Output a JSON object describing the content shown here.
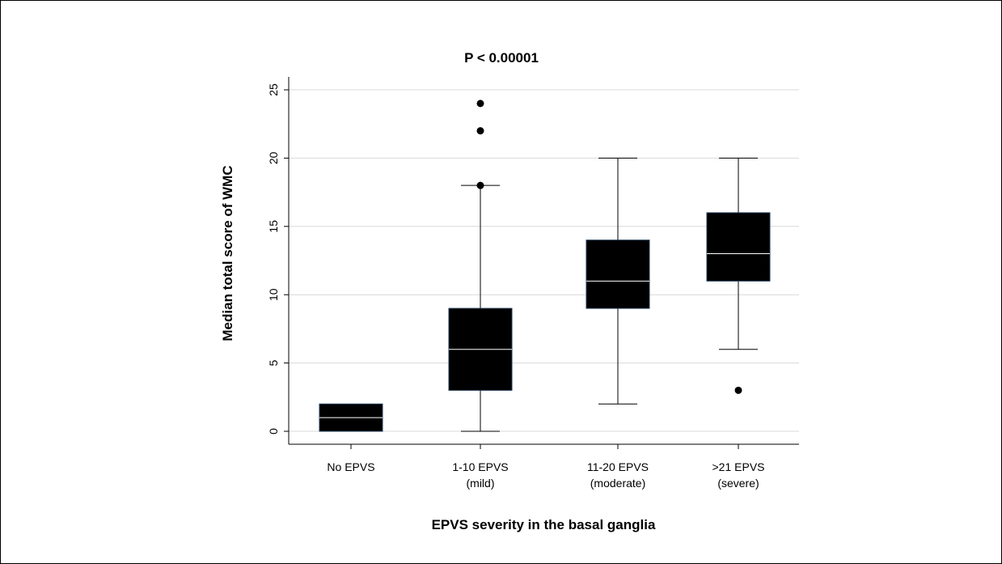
{
  "chart_data": {
    "type": "box",
    "title": "P < 0.00001",
    "xlabel": "EPVS severity in the basal ganglia",
    "ylabel": "Median total score of WMC",
    "ylim": [
      -1,
      26
    ],
    "yticks": [
      "0",
      "5",
      "10",
      "15",
      "20",
      "25"
    ],
    "grid": true,
    "categories": [
      {
        "line1": "No EPVS",
        "line2": ""
      },
      {
        "line1": "1-10 EPVS",
        "line2": "(mild)"
      },
      {
        "line1": "11-20 EPVS",
        "line2": "(moderate)"
      },
      {
        "line1": ">21 EPVS",
        "line2": "(severe)"
      }
    ],
    "boxes": [
      {
        "whisker_low": 0,
        "q1": 0,
        "median": 1,
        "q3": 2,
        "whisker_high": 2,
        "outliers": []
      },
      {
        "whisker_low": 0,
        "q1": 3,
        "median": 6,
        "q3": 9,
        "whisker_high": 18,
        "outliers": [
          18,
          22,
          24
        ]
      },
      {
        "whisker_low": 2,
        "q1": 9,
        "median": 11,
        "q3": 14,
        "whisker_high": 20,
        "outliers": []
      },
      {
        "whisker_low": 6,
        "q1": 11,
        "median": 13,
        "q3": 16,
        "whisker_high": 20,
        "outliers": [
          3
        ]
      }
    ],
    "colors": {
      "box": "#000000",
      "median": "#ffffff",
      "grid": "#d9d9d9",
      "whisker": "#000000"
    }
  }
}
